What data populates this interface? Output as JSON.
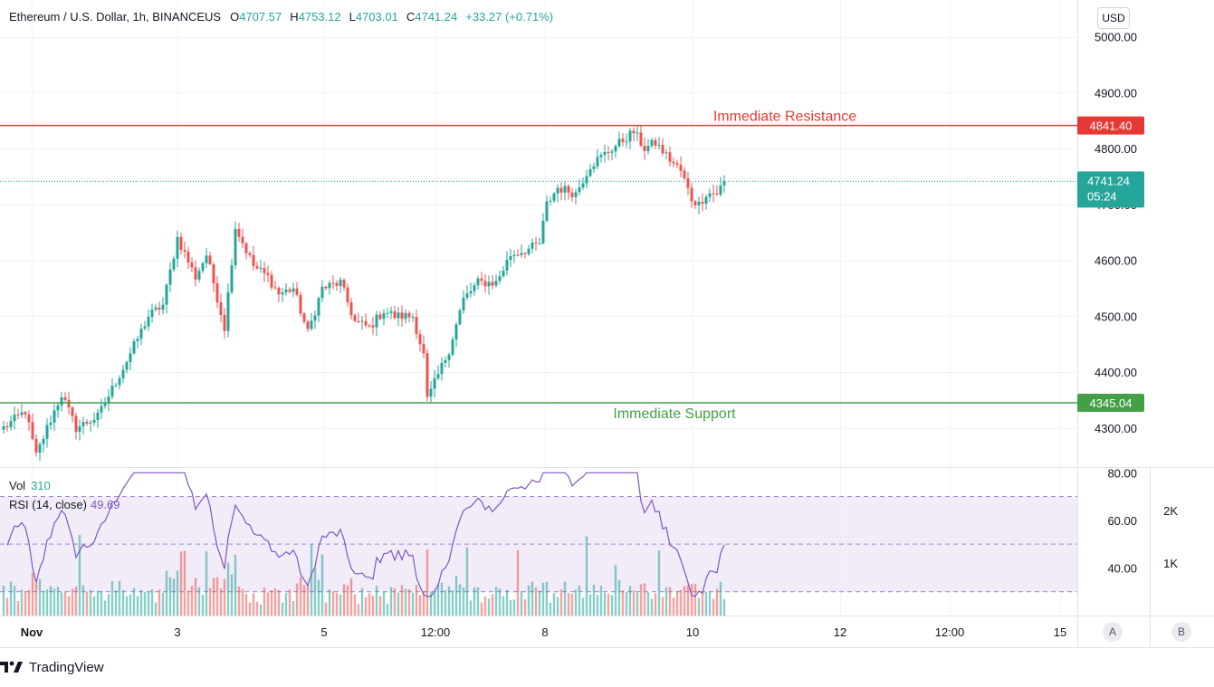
{
  "legend": {
    "symbol": "Ethereum / U.S. Dollar, 1h, BINANCEUS",
    "open_label": "O",
    "open": "4707.57",
    "high_label": "H",
    "high": "4753.12",
    "low_label": "L",
    "low": "4703.01",
    "close_label": "C",
    "close": "4741.24",
    "change": "+33.27 (+0.71%)"
  },
  "currency_button": "USD",
  "vol_legend": {
    "label": "Vol",
    "value": "310"
  },
  "rsi_legend": {
    "label": "RSI (14, close)",
    "value": "49.69"
  },
  "scale_buttons": {
    "auto": "A",
    "log": "B"
  },
  "brand": {
    "name": "TradingView"
  },
  "colors": {
    "up": "#26a69a",
    "down": "#ef5350",
    "resistance": "#e53935",
    "support": "#43a047",
    "rsi": "#7e57c2",
    "rsi_band": "#ede7f6"
  },
  "chart_data": [
    {
      "type": "candlestick",
      "title": "Ethereum / U.S. Dollar, 1h, BINANCEUS",
      "y_ticks": [
        "4300.00",
        "4400.00",
        "4500.00",
        "4600.00",
        "4700.00",
        "4800.00",
        "4900.00",
        "5000.00"
      ],
      "y_range": [
        4230,
        5040
      ],
      "x_ticks": [
        "Nov",
        "3",
        "5",
        "12:00",
        "8",
        "10",
        "12",
        "12:00",
        "15"
      ],
      "levels": [
        {
          "name": "Immediate Resistance",
          "value": 4841.4,
          "value_label": "4841.40"
        },
        {
          "name": "Immediate Support",
          "value": 4345.04,
          "value_label": "4345.04"
        }
      ],
      "last_price": {
        "value": 4741.24,
        "label": "4741.24",
        "countdown": "05:24"
      },
      "anchors": [
        [
          0,
          4300
        ],
        [
          6,
          4330
        ],
        [
          9,
          4250
        ],
        [
          12,
          4300
        ],
        [
          16,
          4360
        ],
        [
          20,
          4300
        ],
        [
          26,
          4320
        ],
        [
          30,
          4370
        ],
        [
          34,
          4420
        ],
        [
          40,
          4500
        ],
        [
          44,
          4520
        ],
        [
          48,
          4640
        ],
        [
          53,
          4570
        ],
        [
          56,
          4610
        ],
        [
          58,
          4560
        ],
        [
          61,
          4480
        ],
        [
          64,
          4660
        ],
        [
          69,
          4590
        ],
        [
          73,
          4570
        ],
        [
          76,
          4540
        ],
        [
          80,
          4550
        ],
        [
          84,
          4470
        ],
        [
          88,
          4550
        ],
        [
          93,
          4560
        ],
        [
          97,
          4490
        ],
        [
          101,
          4480
        ],
        [
          105,
          4510
        ],
        [
          108,
          4500
        ],
        [
          113,
          4500
        ],
        [
          116,
          4430
        ],
        [
          117,
          4350
        ],
        [
          119,
          4380
        ],
        [
          123,
          4440
        ],
        [
          127,
          4530
        ],
        [
          131,
          4560
        ],
        [
          136,
          4560
        ],
        [
          140,
          4610
        ],
        [
          145,
          4620
        ],
        [
          148,
          4630
        ],
        [
          150,
          4700
        ],
        [
          153,
          4730
        ],
        [
          158,
          4720
        ],
        [
          162,
          4770
        ],
        [
          166,
          4790
        ],
        [
          170,
          4810
        ],
        [
          174,
          4830
        ],
        [
          177,
          4800
        ],
        [
          180,
          4810
        ],
        [
          184,
          4780
        ],
        [
          187,
          4760
        ],
        [
          190,
          4710
        ],
        [
          192,
          4700
        ],
        [
          194,
          4720
        ],
        [
          197,
          4720
        ],
        [
          199,
          4741
        ]
      ]
    },
    {
      "type": "bar",
      "title": "Vol",
      "last_value": 310,
      "y_ticks": [
        "1K",
        "2K"
      ]
    },
    {
      "type": "line",
      "title": "RSI (14, close)",
      "last_value": 49.69,
      "y_ticks": [
        "40.00",
        "60.00",
        "80.00"
      ],
      "bands": [
        30,
        50,
        70
      ],
      "y_range": [
        20,
        82
      ]
    }
  ]
}
